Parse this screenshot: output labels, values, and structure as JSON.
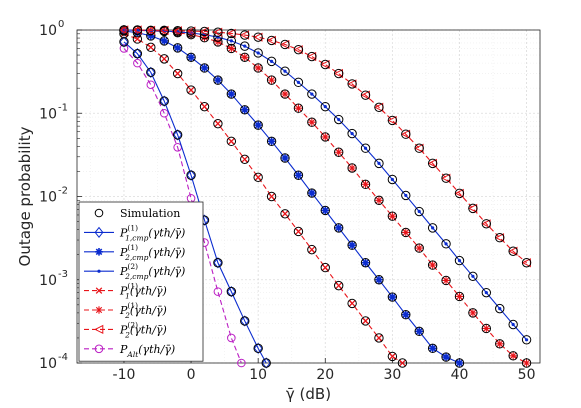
{
  "chart_data": {
    "type": "line",
    "title": "",
    "xlabel": "γ̄ (dB)",
    "ylabel": "Outage probability",
    "xlim": [
      -17,
      52
    ],
    "ylim": [
      0.0001,
      1
    ],
    "yscale": "log",
    "grid": true,
    "legend_position": "bottom-left",
    "x_ticks": [
      -10,
      0,
      10,
      20,
      30,
      40,
      50
    ],
    "x_tick_labels": [
      "-10",
      "0",
      "10",
      "20",
      "30",
      "40",
      "50"
    ],
    "y_ticks": [
      0.0001,
      0.001,
      0.01,
      0.1,
      1
    ],
    "y_tick_labels": [
      {
        "base": "10",
        "exp": "-4"
      },
      {
        "base": "10",
        "exp": "-3"
      },
      {
        "base": "10",
        "exp": "-2"
      },
      {
        "base": "10",
        "exp": "-1"
      },
      {
        "base": "10",
        "exp": "0"
      }
    ],
    "legend": [
      {
        "main": "Simulation",
        "sub": "",
        "rest": "",
        "sup": "",
        "color": "#000000",
        "marker": "circle",
        "dash": "none"
      },
      {
        "main": "P",
        "sub": "1,cmp",
        "rest": "(γth/γ̄)",
        "sup": "(1)",
        "color": "#0b2ccf",
        "marker": "diamond",
        "dash": "none"
      },
      {
        "main": "P",
        "sub": "2,cmp",
        "rest": "(γth/γ̄)",
        "sup": "(1)",
        "color": "#0b2ccf",
        "marker": "star",
        "dash": "none"
      },
      {
        "main": "P",
        "sub": "2,cmp",
        "rest": "(γth/γ̄)",
        "sup": "(2)",
        "color": "#0b2ccf",
        "marker": "point",
        "dash": "none"
      },
      {
        "main": "P",
        "sub": "1",
        "rest": "(γth/γ̄)",
        "sup": "(1)",
        "color": "#e8141a",
        "marker": "x",
        "dash": "5,3"
      },
      {
        "main": "P",
        "sub": "2",
        "rest": "(γth/γ̄)",
        "sup": "(1)",
        "color": "#e8141a",
        "marker": "asterisk",
        "dash": "5,3"
      },
      {
        "main": "P",
        "sub": "2",
        "rest": "(γth/γ̄)",
        "sup": "(2)",
        "color": "#e8141a",
        "marker": "triangle-left",
        "dash": "5,3"
      },
      {
        "main": "P",
        "sub": "Alt",
        "rest": "(γth/γ̄)",
        "sup": "",
        "color": "#bb1fc4",
        "marker": "circle",
        "dash": "5,3"
      }
    ],
    "series": [
      {
        "color": "#bb1fc4",
        "marker": "circle",
        "dash": "5,3",
        "sim": false,
        "x": [
          -10,
          -8,
          -6,
          -4,
          -2,
          0,
          2,
          4,
          6,
          7.5
        ],
        "y": [
          0.6,
          0.4,
          0.22,
          0.1,
          0.039,
          0.0095,
          0.0028,
          0.00072,
          0.0002,
          0.0001
        ]
      },
      {
        "color": "#0b2ccf",
        "marker": "diamond",
        "dash": "none",
        "sim": true,
        "x": [
          -10,
          -8,
          -6,
          -4,
          -2,
          0,
          2,
          4,
          6,
          8,
          10,
          11.2
        ],
        "y": [
          0.72,
          0.52,
          0.31,
          0.14,
          0.055,
          0.018,
          0.0052,
          0.0016,
          0.00072,
          0.00032,
          0.00015,
          0.0001
        ]
      },
      {
        "color": "#e8141a",
        "marker": "x",
        "dash": "5,3",
        "sim": true,
        "x": [
          -10,
          -8,
          -6,
          -4,
          -2,
          0,
          2,
          4,
          6,
          8,
          10,
          12,
          14,
          16,
          18,
          20,
          22,
          24,
          26,
          28,
          30,
          31.5
        ],
        "y": [
          0.9,
          0.78,
          0.62,
          0.45,
          0.3,
          0.19,
          0.12,
          0.075,
          0.046,
          0.028,
          0.017,
          0.01,
          0.0062,
          0.0038,
          0.0023,
          0.0014,
          0.00085,
          0.00052,
          0.00032,
          0.0002,
          0.00012,
          0.0001
        ]
      },
      {
        "color": "#0b2ccf",
        "marker": "star",
        "dash": "none",
        "sim": true,
        "x": [
          -10,
          -8,
          -6,
          -4,
          -2,
          0,
          2,
          4,
          6,
          8,
          10,
          12,
          14,
          16,
          18,
          20,
          22,
          24,
          26,
          28,
          30,
          32,
          34,
          36,
          38,
          40
        ],
        "y": [
          0.97,
          0.93,
          0.85,
          0.74,
          0.61,
          0.47,
          0.35,
          0.25,
          0.17,
          0.11,
          0.072,
          0.046,
          0.029,
          0.018,
          0.011,
          0.0068,
          0.0042,
          0.0026,
          0.0016,
          0.001,
          0.00062,
          0.00038,
          0.00024,
          0.00015,
          0.000118,
          0.0001
        ]
      },
      {
        "color": "#e8141a",
        "marker": "asterisk",
        "dash": "5,3",
        "sim": true,
        "x": [
          -10,
          -8,
          -6,
          -4,
          -2,
          0,
          2,
          4,
          6,
          8,
          10,
          12,
          14,
          16,
          18,
          20,
          22,
          24,
          26,
          28,
          30,
          32,
          34,
          36,
          38,
          40,
          42,
          44,
          46,
          48,
          50
        ],
        "y": [
          1.0,
          0.99,
          0.98,
          0.96,
          0.93,
          0.88,
          0.81,
          0.72,
          0.6,
          0.47,
          0.35,
          0.25,
          0.17,
          0.115,
          0.078,
          0.052,
          0.034,
          0.022,
          0.014,
          0.009,
          0.0058,
          0.0037,
          0.0024,
          0.0015,
          0.00098,
          0.00063,
          0.0004,
          0.00026,
          0.00017,
          0.000122,
          0.0001
        ]
      },
      {
        "color": "#0b2ccf",
        "marker": "point",
        "dash": "none",
        "sim": true,
        "x": [
          -10,
          -8,
          -6,
          -4,
          -2,
          0,
          2,
          4,
          6,
          8,
          10,
          12,
          14,
          16,
          18,
          20,
          22,
          24,
          26,
          28,
          30,
          32,
          34,
          36,
          38,
          40,
          42,
          44,
          46,
          48,
          50
        ],
        "y": [
          1.0,
          0.99,
          0.98,
          0.97,
          0.95,
          0.92,
          0.88,
          0.82,
          0.74,
          0.64,
          0.53,
          0.42,
          0.32,
          0.235,
          0.17,
          0.12,
          0.084,
          0.057,
          0.038,
          0.025,
          0.016,
          0.0103,
          0.0066,
          0.0042,
          0.0027,
          0.0017,
          0.0011,
          0.0007,
          0.00045,
          0.00029,
          0.00019
        ]
      },
      {
        "color": "#e8141a",
        "marker": "triangle-left",
        "dash": "5,3",
        "sim": true,
        "x": [
          -10,
          -8,
          -6,
          -4,
          -2,
          0,
          2,
          4,
          6,
          8,
          10,
          12,
          14,
          16,
          18,
          20,
          22,
          24,
          26,
          28,
          30,
          32,
          34,
          36,
          38,
          40,
          42,
          44,
          46,
          48,
          50
        ],
        "y": [
          1.0,
          1.0,
          0.99,
          0.99,
          0.98,
          0.97,
          0.96,
          0.94,
          0.91,
          0.87,
          0.82,
          0.75,
          0.67,
          0.58,
          0.48,
          0.385,
          0.3,
          0.225,
          0.165,
          0.118,
          0.082,
          0.056,
          0.038,
          0.025,
          0.0166,
          0.0109,
          0.0072,
          0.0047,
          0.0032,
          0.0022,
          0.0016
        ]
      }
    ]
  }
}
